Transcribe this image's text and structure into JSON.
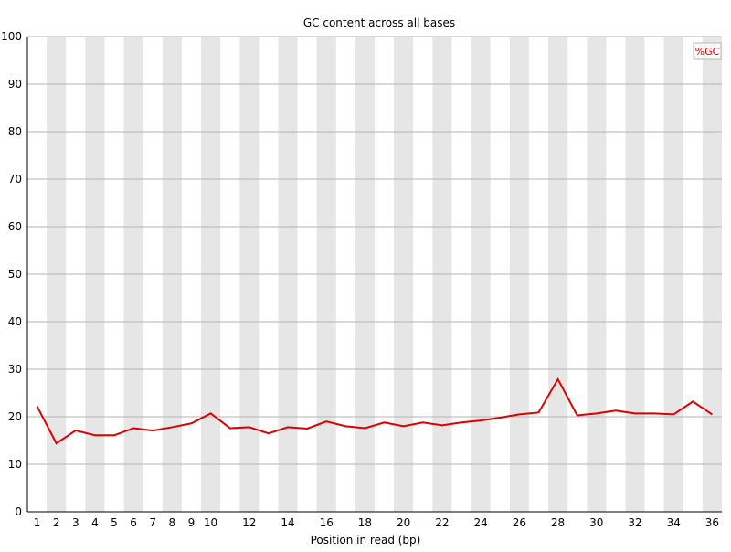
{
  "chart_data": {
    "type": "line",
    "title": "GC content across all bases",
    "xlabel": "Position in read (bp)",
    "ylabel": "",
    "ylim": [
      0,
      100
    ],
    "yticks": [
      0,
      10,
      20,
      30,
      40,
      50,
      60,
      70,
      80,
      90,
      100
    ],
    "categories": [
      "1",
      "2",
      "3",
      "4",
      "5",
      "6",
      "7",
      "8",
      "9",
      "10",
      "11",
      "12",
      "13",
      "14",
      "15",
      "16",
      "17",
      "18",
      "19",
      "20",
      "21",
      "22",
      "23",
      "24",
      "25",
      "26",
      "27",
      "28",
      "29",
      "30",
      "31",
      "32",
      "33",
      "34",
      "35",
      "36"
    ],
    "tick_labels": [
      "1",
      "2",
      "3",
      "4",
      "5",
      "6",
      "7",
      "8",
      "9",
      "10",
      "",
      "12",
      "",
      "14",
      "",
      "16",
      "",
      "18",
      "",
      "20",
      "",
      "22",
      "",
      "24",
      "",
      "26",
      "",
      "28",
      "",
      "30",
      "",
      "32",
      "",
      "34",
      "",
      "36"
    ],
    "series": [
      {
        "name": "%GC",
        "color": "#dd0000",
        "values": [
          22.2,
          14.4,
          17.1,
          16.1,
          16.1,
          17.6,
          17.1,
          17.8,
          18.6,
          20.7,
          17.6,
          17.8,
          16.5,
          17.8,
          17.5,
          19.0,
          18.0,
          17.6,
          18.8,
          18.0,
          18.8,
          18.2,
          18.8,
          19.2,
          19.8,
          20.5,
          20.9,
          27.9,
          20.3,
          20.7,
          21.3,
          20.7,
          20.7,
          20.5,
          23.2,
          20.5
        ]
      }
    ],
    "grid": true,
    "legend_position": "top-right",
    "colors": {
      "stripe": "#e6e6e6",
      "gridline": "#b4b4b4",
      "axis": "#000000"
    }
  }
}
